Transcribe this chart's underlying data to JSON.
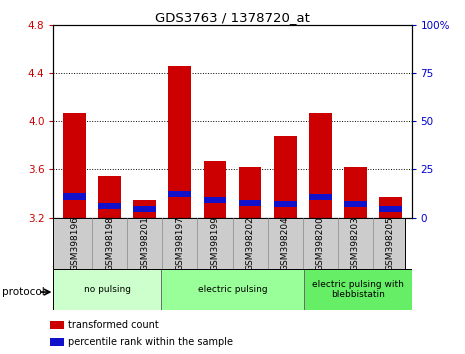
{
  "title": "GDS3763 / 1378720_at",
  "categories": [
    "GSM398196",
    "GSM398198",
    "GSM398201",
    "GSM398197",
    "GSM398199",
    "GSM398202",
    "GSM398204",
    "GSM398200",
    "GSM398203",
    "GSM398205"
  ],
  "red_values": [
    4.07,
    3.55,
    3.35,
    4.46,
    3.67,
    3.62,
    3.88,
    4.07,
    3.62,
    3.37
  ],
  "blue_bottom": [
    3.35,
    3.27,
    3.25,
    3.37,
    3.32,
    3.3,
    3.29,
    3.35,
    3.29,
    3.25
  ],
  "blue_heights": [
    0.055,
    0.05,
    0.045,
    0.055,
    0.05,
    0.05,
    0.05,
    0.05,
    0.05,
    0.045
  ],
  "ymin": 3.2,
  "ymax": 4.8,
  "yticks": [
    3.2,
    3.6,
    4.0,
    4.4,
    4.8
  ],
  "y2min": 0,
  "y2max": 100,
  "y2ticks": [
    0,
    25,
    50,
    75,
    100
  ],
  "bar_color": "#cc0000",
  "blue_color": "#1111cc",
  "bar_width": 0.65,
  "groups": [
    {
      "label": "no pulsing",
      "start": 0,
      "end": 3,
      "color": "#ccffcc"
    },
    {
      "label": "electric pulsing",
      "start": 3,
      "end": 7,
      "color": "#99ff99"
    },
    {
      "label": "electric pulsing with\nblebbistatin",
      "start": 7,
      "end": 10,
      "color": "#66ee66"
    }
  ],
  "protocol_label": "protocol",
  "legend_items": [
    {
      "label": "transformed count",
      "color": "#cc0000"
    },
    {
      "label": "percentile rank within the sample",
      "color": "#1111cc"
    }
  ]
}
